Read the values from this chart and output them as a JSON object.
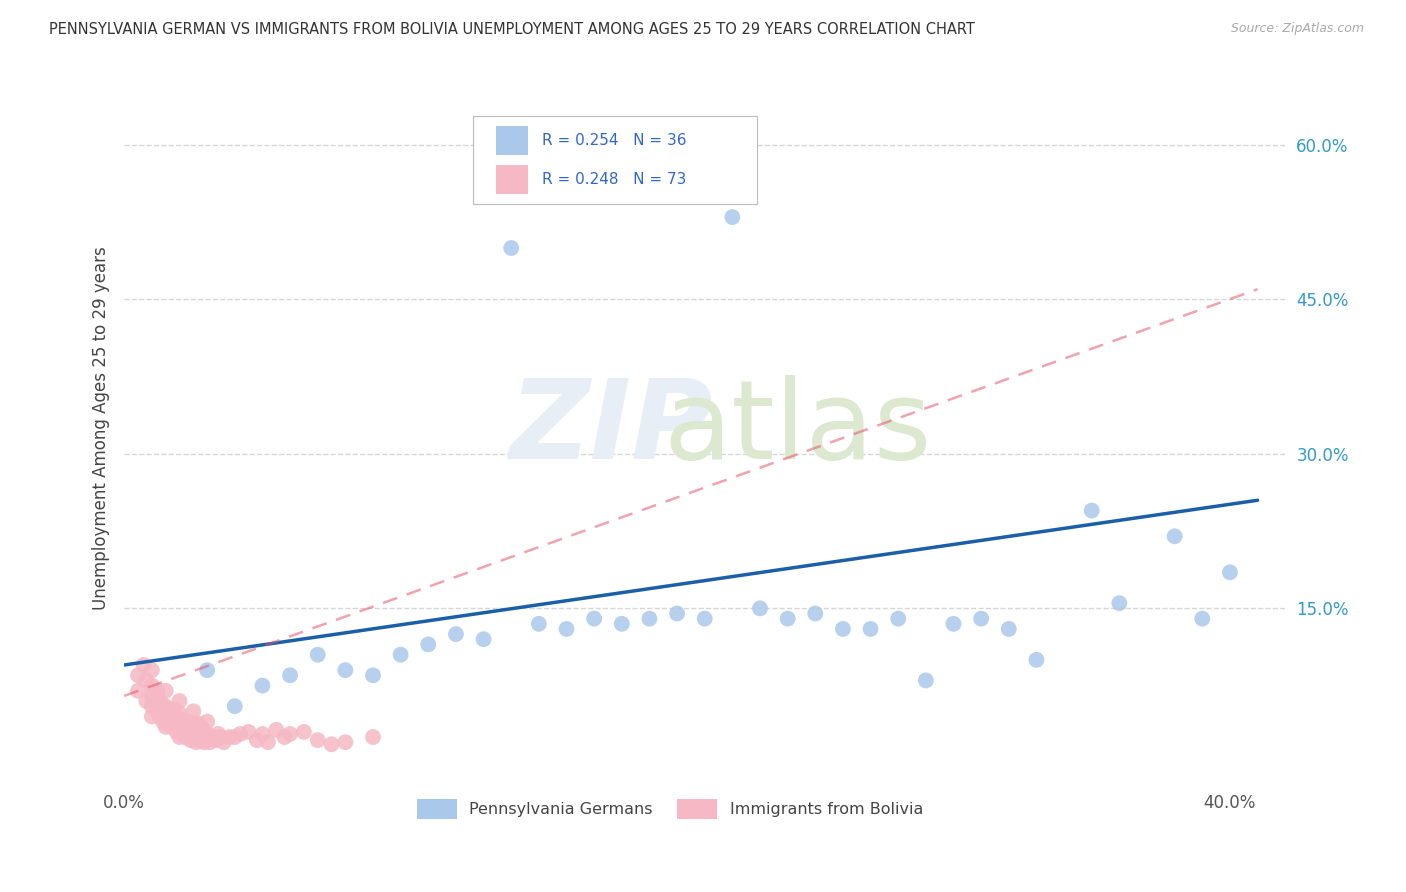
{
  "title": "PENNSYLVANIA GERMAN VS IMMIGRANTS FROM BOLIVIA UNEMPLOYMENT AMONG AGES 25 TO 29 YEARS CORRELATION CHART",
  "source": "Source: ZipAtlas.com",
  "ylabel": "Unemployment Among Ages 25 to 29 years",
  "xlim": [
    0.0,
    0.42
  ],
  "ylim": [
    -0.02,
    0.67
  ],
  "ytick_right_labels": [
    "60.0%",
    "45.0%",
    "30.0%",
    "15.0%"
  ],
  "ytick_right_values": [
    0.6,
    0.45,
    0.3,
    0.15
  ],
  "series1_name": "Pennsylvania Germans",
  "series1_color": "#aac8ea",
  "series1_line_color": "#1a5fa8",
  "series1_R": 0.254,
  "series1_N": 36,
  "series2_name": "Immigrants from Bolivia",
  "series2_color": "#f5b8c4",
  "series2_line_color": "#e8566a",
  "series2_R": 0.248,
  "series2_N": 73,
  "legend_color": "#3366cc",
  "background_color": "#ffffff",
  "grid_color": "#cccccc",
  "scatter1_x": [
    0.03,
    0.04,
    0.05,
    0.06,
    0.07,
    0.08,
    0.09,
    0.1,
    0.11,
    0.12,
    0.13,
    0.14,
    0.15,
    0.16,
    0.17,
    0.18,
    0.19,
    0.2,
    0.21,
    0.22,
    0.23,
    0.24,
    0.25,
    0.26,
    0.27,
    0.28,
    0.29,
    0.3,
    0.31,
    0.32,
    0.33,
    0.35,
    0.36,
    0.38,
    0.39,
    0.4
  ],
  "scatter1_y": [
    0.09,
    0.055,
    0.075,
    0.085,
    0.105,
    0.09,
    0.085,
    0.105,
    0.115,
    0.125,
    0.12,
    0.5,
    0.135,
    0.13,
    0.14,
    0.135,
    0.14,
    0.145,
    0.14,
    0.53,
    0.15,
    0.14,
    0.145,
    0.13,
    0.13,
    0.14,
    0.08,
    0.135,
    0.14,
    0.13,
    0.1,
    0.245,
    0.155,
    0.22,
    0.14,
    0.185
  ],
  "scatter2_x": [
    0.005,
    0.005,
    0.007,
    0.008,
    0.008,
    0.01,
    0.01,
    0.01,
    0.01,
    0.01,
    0.012,
    0.012,
    0.013,
    0.013,
    0.014,
    0.014,
    0.015,
    0.015,
    0.015,
    0.015,
    0.016,
    0.016,
    0.017,
    0.017,
    0.018,
    0.018,
    0.019,
    0.019,
    0.02,
    0.02,
    0.02,
    0.02,
    0.021,
    0.021,
    0.022,
    0.022,
    0.023,
    0.023,
    0.024,
    0.024,
    0.025,
    0.025,
    0.025,
    0.026,
    0.026,
    0.027,
    0.027,
    0.028,
    0.028,
    0.029,
    0.03,
    0.03,
    0.031,
    0.032,
    0.033,
    0.034,
    0.035,
    0.036,
    0.038,
    0.04,
    0.042,
    0.045,
    0.048,
    0.05,
    0.052,
    0.055,
    0.058,
    0.06,
    0.065,
    0.07,
    0.075,
    0.08,
    0.09
  ],
  "scatter2_y": [
    0.085,
    0.07,
    0.095,
    0.06,
    0.08,
    0.045,
    0.055,
    0.065,
    0.075,
    0.09,
    0.05,
    0.07,
    0.045,
    0.06,
    0.04,
    0.055,
    0.035,
    0.045,
    0.055,
    0.07,
    0.04,
    0.05,
    0.035,
    0.048,
    0.038,
    0.052,
    0.03,
    0.042,
    0.035,
    0.048,
    0.025,
    0.06,
    0.03,
    0.042,
    0.025,
    0.038,
    0.028,
    0.04,
    0.022,
    0.035,
    0.025,
    0.038,
    0.05,
    0.02,
    0.032,
    0.025,
    0.038,
    0.022,
    0.034,
    0.02,
    0.028,
    0.04,
    0.02,
    0.025,
    0.022,
    0.028,
    0.025,
    0.02,
    0.025,
    0.025,
    0.028,
    0.03,
    0.022,
    0.028,
    0.02,
    0.032,
    0.025,
    0.028,
    0.03,
    0.022,
    0.018,
    0.02,
    0.025
  ],
  "line1_x0": 0.0,
  "line1_y0": 0.095,
  "line1_x1": 0.41,
  "line1_y1": 0.255,
  "line2_x0": 0.0,
  "line2_y0": 0.065,
  "line2_x1": 0.41,
  "line2_y1": 0.46
}
